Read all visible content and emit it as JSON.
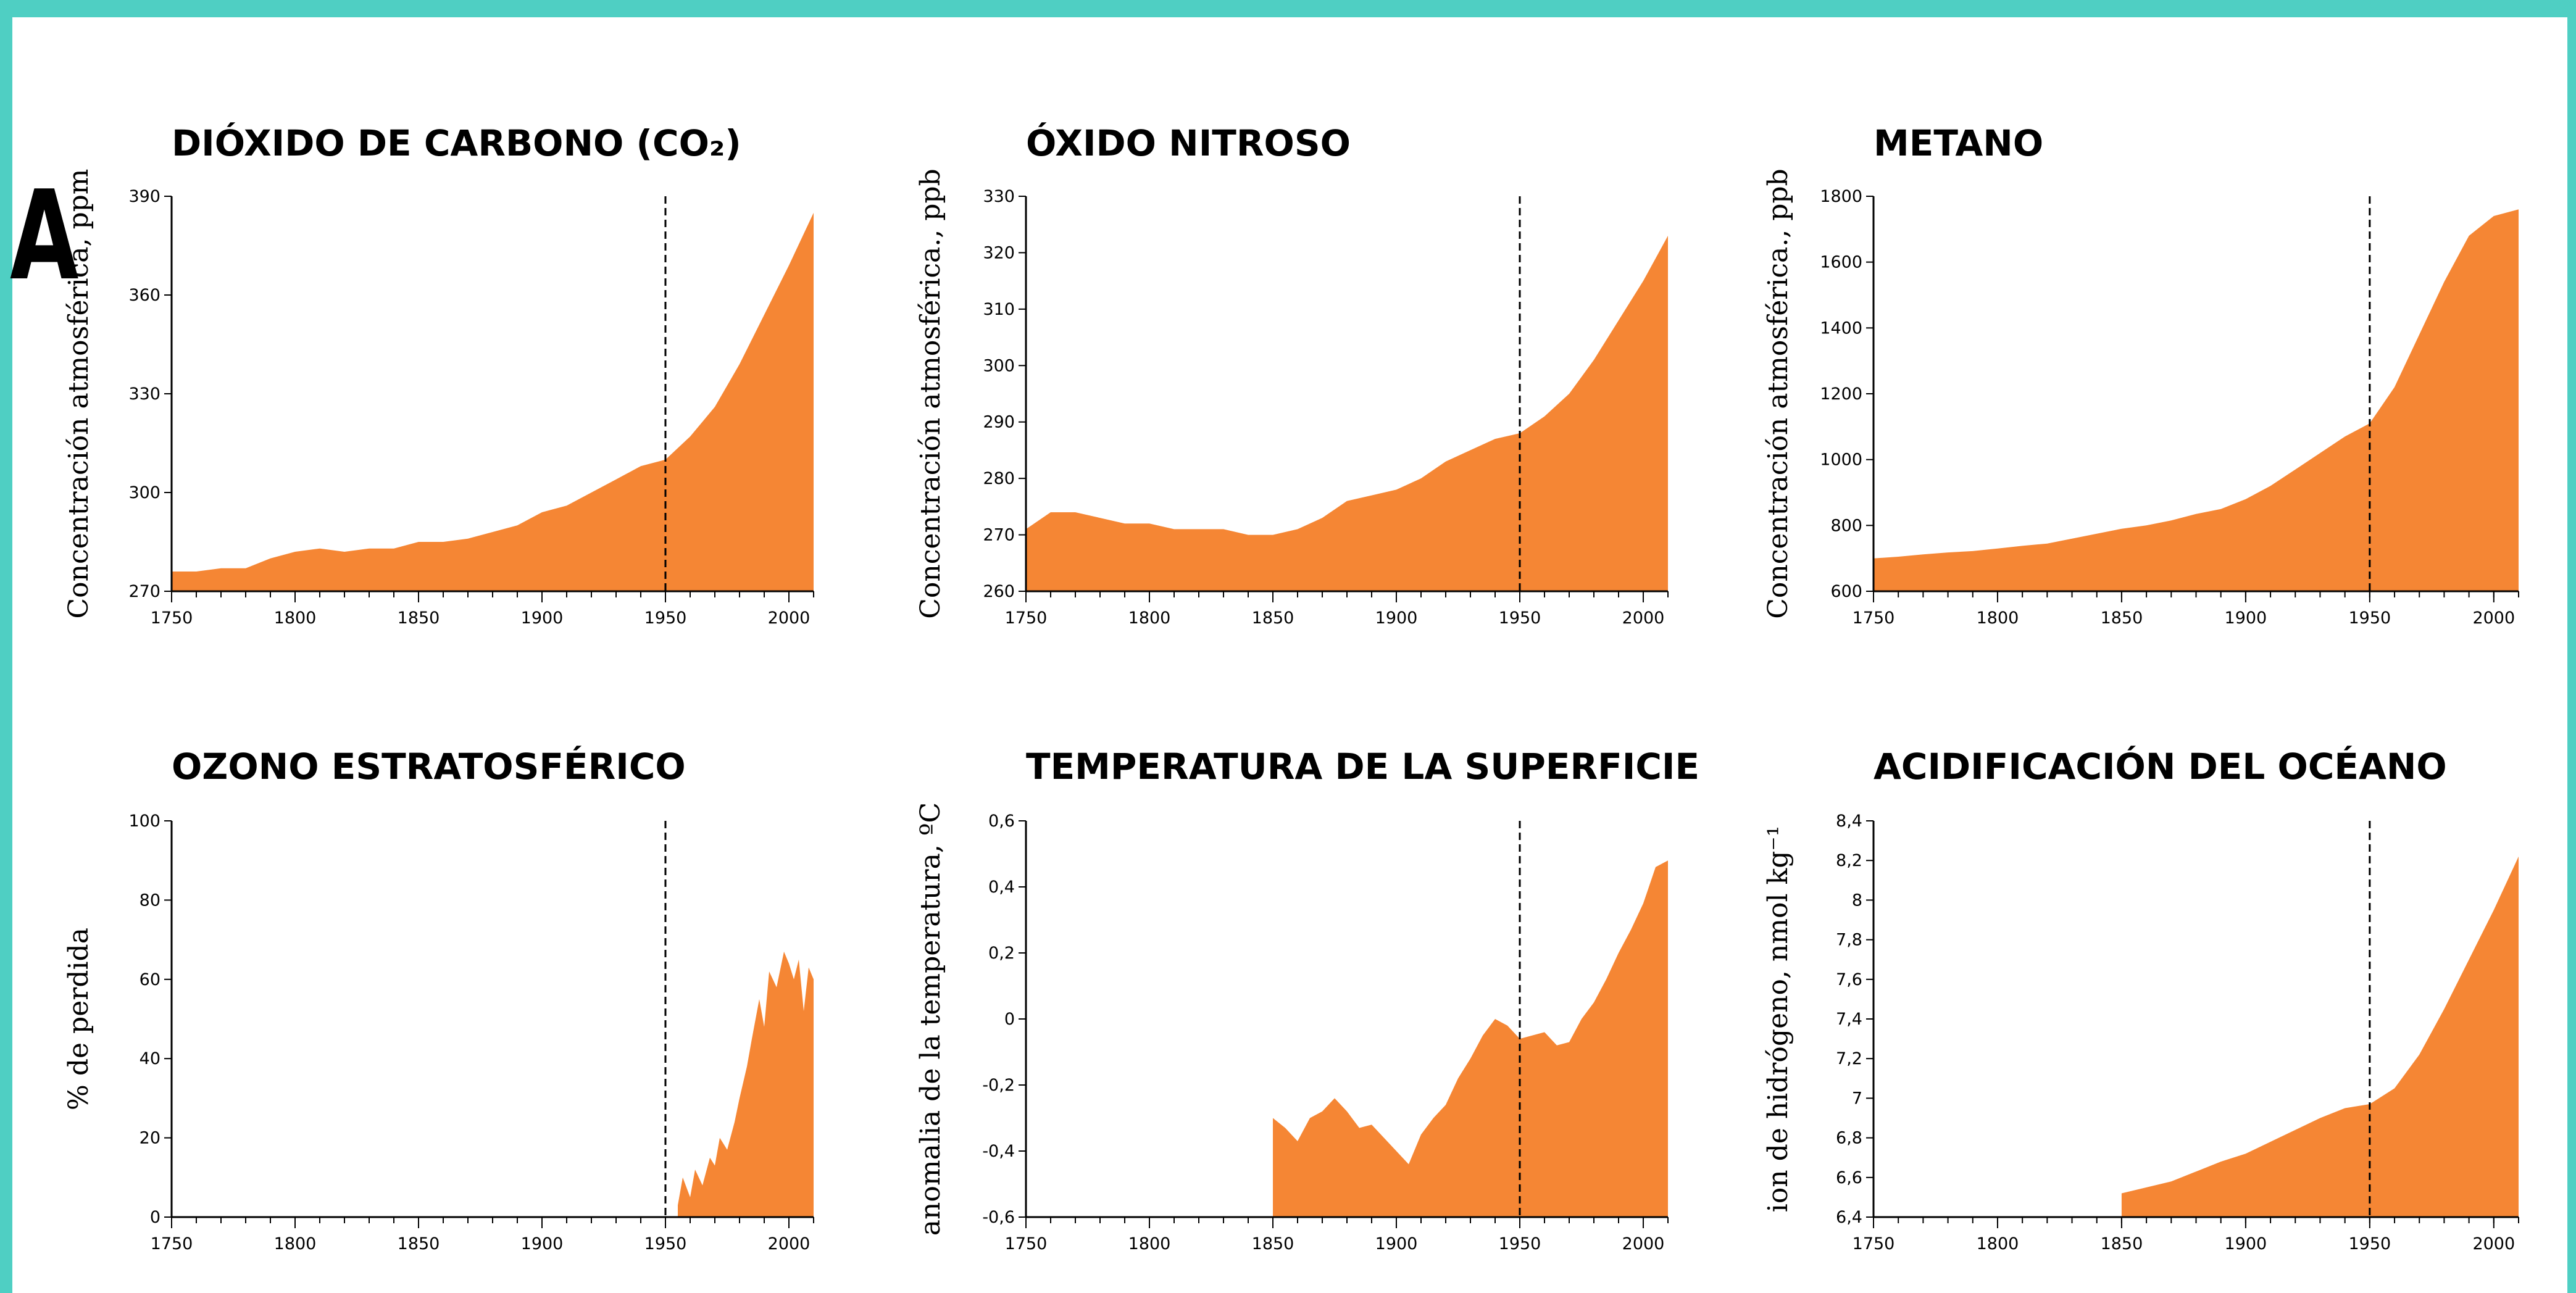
{
  "panel_letter": "A",
  "colors": {
    "fill": "#f58634",
    "frame": "#4fcfc3",
    "axis": "#000000"
  },
  "chart_data": [
    {
      "type": "area",
      "title": "DIÓXIDO DE CARBONO (CO₂)",
      "ylabel": "Concentración atmosférica, ppm",
      "xlim": [
        1750,
        2010
      ],
      "ylim": [
        270,
        390
      ],
      "x_ticks": [
        1750,
        1800,
        1850,
        1900,
        1950,
        2000
      ],
      "y_ticks": [
        270,
        300,
        330,
        360,
        390
      ],
      "marker_x": 1950,
      "x": [
        1750,
        1760,
        1770,
        1780,
        1790,
        1800,
        1810,
        1820,
        1830,
        1840,
        1850,
        1860,
        1870,
        1880,
        1890,
        1900,
        1910,
        1920,
        1930,
        1940,
        1950,
        1960,
        1970,
        1980,
        1990,
        2000,
        2010
      ],
      "values": [
        276,
        276,
        277,
        277,
        280,
        282,
        283,
        282,
        283,
        283,
        285,
        285,
        286,
        288,
        290,
        294,
        296,
        300,
        304,
        308,
        310,
        317,
        326,
        339,
        354,
        369,
        385
      ]
    },
    {
      "type": "area",
      "title": "ÓXIDO NITROSO",
      "ylabel": "Concentración atmosférica., ppb",
      "xlim": [
        1750,
        2010
      ],
      "ylim": [
        260,
        330
      ],
      "x_ticks": [
        1750,
        1800,
        1850,
        1900,
        1950,
        2000
      ],
      "y_ticks": [
        260,
        270,
        280,
        290,
        300,
        310,
        320,
        330
      ],
      "marker_x": 1950,
      "x": [
        1750,
        1760,
        1770,
        1780,
        1790,
        1800,
        1810,
        1820,
        1830,
        1840,
        1850,
        1860,
        1870,
        1880,
        1890,
        1900,
        1910,
        1920,
        1930,
        1940,
        1950,
        1960,
        1970,
        1980,
        1990,
        2000,
        2010
      ],
      "values": [
        271,
        274,
        274,
        273,
        272,
        272,
        271,
        271,
        271,
        270,
        270,
        271,
        273,
        276,
        277,
        278,
        280,
        283,
        285,
        287,
        288,
        291,
        295,
        301,
        308,
        315,
        323
      ]
    },
    {
      "type": "area",
      "title": "METANO",
      "ylabel": "Concentración atmosférica., ppb",
      "xlim": [
        1750,
        2010
      ],
      "ylim": [
        600,
        1800
      ],
      "x_ticks": [
        1750,
        1800,
        1850,
        1900,
        1950,
        2000
      ],
      "y_ticks": [
        600,
        800,
        1000,
        1200,
        1400,
        1600,
        1800
      ],
      "marker_x": 1950,
      "x": [
        1750,
        1760,
        1770,
        1780,
        1790,
        1800,
        1810,
        1820,
        1830,
        1840,
        1850,
        1860,
        1870,
        1880,
        1890,
        1900,
        1910,
        1920,
        1930,
        1940,
        1950,
        1960,
        1970,
        1980,
        1990,
        2000,
        2010
      ],
      "values": [
        700,
        705,
        712,
        718,
        722,
        730,
        738,
        745,
        760,
        775,
        790,
        800,
        815,
        835,
        850,
        880,
        920,
        970,
        1020,
        1070,
        1110,
        1220,
        1380,
        1540,
        1680,
        1740,
        1760
      ]
    },
    {
      "type": "area",
      "title": "OZONO ESTRATOSFÉRICO",
      "ylabel": "% de perdida",
      "xlim": [
        1750,
        2010
      ],
      "ylim": [
        0,
        100
      ],
      "x_ticks": [
        1750,
        1800,
        1850,
        1900,
        1950,
        2000
      ],
      "y_ticks": [
        0,
        20,
        40,
        60,
        80,
        100
      ],
      "marker_x": 1950,
      "x": [
        1955,
        1957,
        1960,
        1962,
        1965,
        1968,
        1970,
        1972,
        1975,
        1978,
        1980,
        1983,
        1985,
        1988,
        1990,
        1992,
        1995,
        1998,
        2000,
        2002,
        2004,
        2006,
        2008,
        2010
      ],
      "values": [
        3,
        10,
        5,
        12,
        8,
        15,
        13,
        20,
        17,
        24,
        30,
        38,
        45,
        55,
        48,
        62,
        58,
        67,
        64,
        60,
        65,
        52,
        63,
        60
      ]
    },
    {
      "type": "area",
      "title": "TEMPERATURA DE LA SUPERFICIE",
      "ylabel": "anomalia de la temperatura, ºC",
      "xlim": [
        1750,
        2010
      ],
      "ylim": [
        -0.6,
        0.6
      ],
      "x_ticks": [
        1750,
        1800,
        1850,
        1900,
        1950,
        2000
      ],
      "y_ticks": [
        -0.6,
        -0.4,
        -0.2,
        0,
        0.2,
        0.4,
        0.6
      ],
      "y_tick_labels": [
        "-0,6",
        "-0,4",
        "-0,2",
        "0",
        "0,2",
        "0,4",
        "0,6"
      ],
      "marker_x": 1950,
      "x": [
        1850,
        1855,
        1860,
        1865,
        1870,
        1875,
        1880,
        1885,
        1890,
        1895,
        1900,
        1905,
        1910,
        1915,
        1920,
        1925,
        1930,
        1935,
        1940,
        1945,
        1950,
        1955,
        1960,
        1965,
        1970,
        1975,
        1980,
        1985,
        1990,
        1995,
        2000,
        2005,
        2010
      ],
      "values": [
        -0.3,
        -0.33,
        -0.37,
        -0.3,
        -0.28,
        -0.24,
        -0.28,
        -0.33,
        -0.32,
        -0.36,
        -0.4,
        -0.44,
        -0.35,
        -0.3,
        -0.26,
        -0.18,
        -0.12,
        -0.05,
        0.0,
        -0.02,
        -0.06,
        -0.05,
        -0.04,
        -0.08,
        -0.07,
        0.0,
        0.05,
        0.12,
        0.2,
        0.27,
        0.35,
        0.46,
        0.48
      ]
    },
    {
      "type": "area",
      "title": "ACIDIFICACIÓN DEL OCÉANO",
      "ylabel": "ion de hidrógeno, nmol kg⁻¹",
      "xlim": [
        1750,
        2010
      ],
      "ylim": [
        6.4,
        8.4
      ],
      "x_ticks": [
        1750,
        1800,
        1850,
        1900,
        1950,
        2000
      ],
      "y_ticks": [
        6.4,
        6.6,
        6.8,
        7.0,
        7.2,
        7.4,
        7.6,
        7.8,
        8.0,
        8.2,
        8.4
      ],
      "y_tick_labels": [
        "6,4",
        "6,6",
        "6,8",
        "7",
        "7,2",
        "7,4",
        "7,6",
        "7,8",
        "8",
        "8,2",
        "8,4"
      ],
      "marker_x": 1950,
      "x": [
        1850,
        1860,
        1870,
        1880,
        1890,
        1900,
        1910,
        1920,
        1930,
        1940,
        1950,
        1960,
        1970,
        1980,
        1990,
        2000,
        2010
      ],
      "values": [
        6.52,
        6.55,
        6.58,
        6.63,
        6.68,
        6.72,
        6.78,
        6.84,
        6.9,
        6.95,
        6.97,
        7.05,
        7.22,
        7.45,
        7.7,
        7.95,
        8.22
      ]
    }
  ]
}
